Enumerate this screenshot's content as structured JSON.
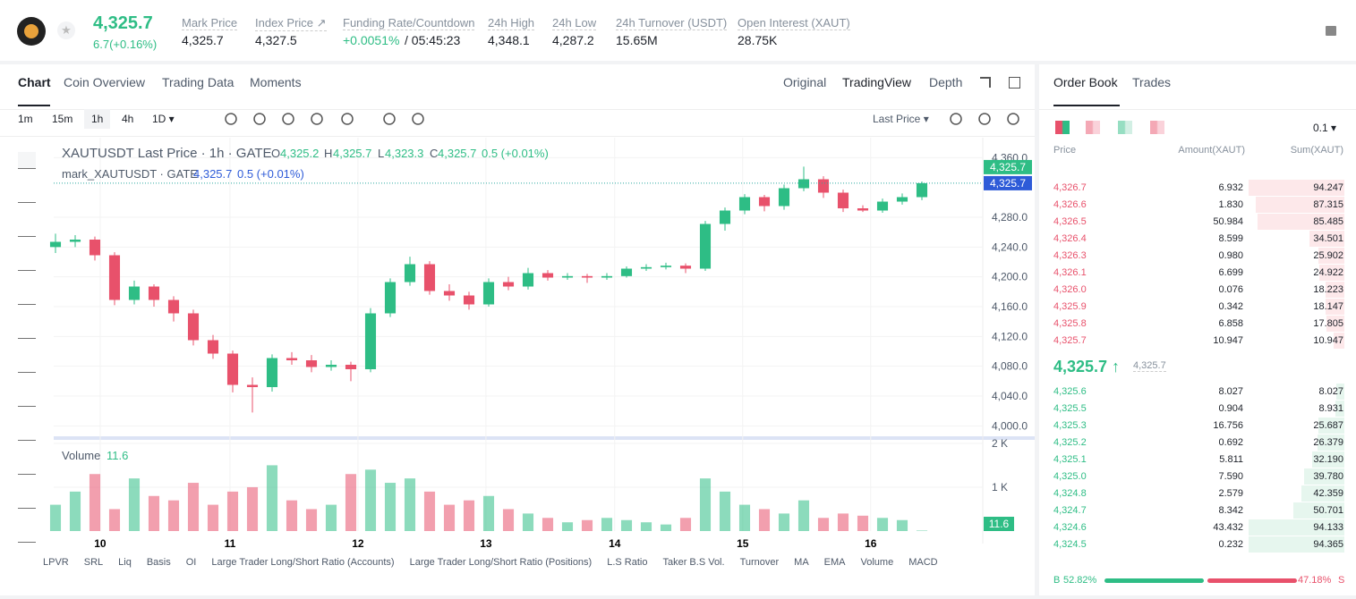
{
  "header": {
    "last_price": "4,325.7",
    "change": "6.7(+0.16%)",
    "stats": [
      {
        "label": "Mark Price",
        "value": "4,325.7"
      },
      {
        "label": "Index Price ↗",
        "value": "4,327.5"
      },
      {
        "label": "Funding Rate/Countdown",
        "value": "+0.0051%",
        "countdown": "/ 05:45:23"
      },
      {
        "label": "24h High",
        "value": "4,348.1"
      },
      {
        "label": "24h Low",
        "value": "4,287.2"
      },
      {
        "label": "24h Turnover (USDT)",
        "value": "15.65M"
      },
      {
        "label": "Open Interest (XAUT)",
        "value": "28.75K"
      }
    ]
  },
  "chart_tabs": [
    "Chart",
    "Coin Overview",
    "Trading Data",
    "Moments"
  ],
  "view_tabs": [
    "Original",
    "TradingView",
    "Depth"
  ],
  "intervals": [
    "1m",
    "15m",
    "1h",
    "4h",
    "1D ▾"
  ],
  "price_source": "Last Price ▾",
  "legend": {
    "title": "XAUTUSDT Last Price · 1h · GATE",
    "o_label": "O",
    "o": "4,325.2",
    "h_label": "H",
    "h": "4,325.7",
    "l_label": "L",
    "l": "4,323.3",
    "c_label": "C",
    "c": "4,325.7",
    "chg": "0.5 (+0.01%)",
    "mark_title": "mark_XAUTUSDT · GATE",
    "mark_price": "4,325.7",
    "mark_chg": "0.5 (+0.01%)"
  },
  "chart_data": {
    "type": "candlestick",
    "candles": [
      [
        4240,
        4258,
        4232,
        4247
      ],
      [
        4247,
        4256,
        4240,
        4250
      ],
      [
        4250,
        4254,
        4222,
        4229
      ],
      [
        4229,
        4233,
        4162,
        4169
      ],
      [
        4169,
        4195,
        4163,
        4187
      ],
      [
        4187,
        4190,
        4160,
        4169
      ],
      [
        4169,
        4174,
        4140,
        4151
      ],
      [
        4151,
        4156,
        4108,
        4115
      ],
      [
        4115,
        4122,
        4090,
        4097
      ],
      [
        4097,
        4101,
        4045,
        4055
      ],
      [
        4055,
        4065,
        4018,
        4052
      ],
      [
        4052,
        4096,
        4046,
        4091
      ],
      [
        4091,
        4099,
        4082,
        4088
      ],
      [
        4088,
        4095,
        4072,
        4079
      ],
      [
        4079,
        4088,
        4074,
        4082
      ],
      [
        4082,
        4086,
        4060,
        4076
      ],
      [
        4076,
        4158,
        4072,
        4151
      ],
      [
        4151,
        4198,
        4146,
        4193
      ],
      [
        4193,
        4227,
        4188,
        4217
      ],
      [
        4217,
        4221,
        4176,
        4181
      ],
      [
        4181,
        4190,
        4168,
        4175
      ],
      [
        4175,
        4180,
        4156,
        4163
      ],
      [
        4163,
        4198,
        4160,
        4193
      ],
      [
        4193,
        4200,
        4182,
        4187
      ],
      [
        4187,
        4212,
        4183,
        4205
      ],
      [
        4205,
        4209,
        4195,
        4199
      ],
      [
        4199,
        4205,
        4196,
        4201
      ],
      [
        4201,
        4204,
        4192,
        4199
      ],
      [
        4199,
        4205,
        4196,
        4201
      ],
      [
        4201,
        4214,
        4199,
        4211
      ],
      [
        4211,
        4217,
        4208,
        4213
      ],
      [
        4213,
        4219,
        4210,
        4215
      ],
      [
        4215,
        4218,
        4205,
        4211
      ],
      [
        4211,
        4275,
        4208,
        4271
      ],
      [
        4271,
        4293,
        4262,
        4289
      ],
      [
        4289,
        4311,
        4284,
        4307
      ],
      [
        4307,
        4310,
        4288,
        4295
      ],
      [
        4295,
        4324,
        4290,
        4319
      ],
      [
        4319,
        4348,
        4315,
        4331
      ],
      [
        4331,
        4335,
        4306,
        4313
      ],
      [
        4313,
        4317,
        4287,
        4292
      ],
      [
        4292,
        4296,
        4287,
        4289
      ],
      [
        4289,
        4305,
        4286,
        4301
      ],
      [
        4301,
        4312,
        4297,
        4307
      ],
      [
        4307,
        4328,
        4303,
        4325.7
      ]
    ],
    "volume": [
      600,
      900,
      1300,
      500,
      1200,
      800,
      700,
      1100,
      600,
      900,
      1000,
      1500,
      700,
      500,
      600,
      1300,
      1400,
      1100,
      1200,
      900,
      600,
      700,
      800,
      500,
      400,
      300,
      200,
      250,
      300,
      250,
      200,
      150,
      300,
      1200,
      900,
      600,
      500,
      400,
      700,
      300,
      400,
      350,
      300,
      250,
      11.6
    ],
    "volume_title": "Volume",
    "volume_last": "11.6",
    "up_color": "#2ebd85",
    "down_color": "#e8516b",
    "xlim": [
      0,
      44
    ],
    "xticks": [
      {
        "value": 2.27,
        "label": "10"
      },
      {
        "value": 8.86,
        "label": "11"
      },
      {
        "value": 15.36,
        "label": "12"
      },
      {
        "value": 21.86,
        "label": "13"
      },
      {
        "value": 28.4,
        "label": "14"
      },
      {
        "value": 34.9,
        "label": "15"
      },
      {
        "value": 41.4,
        "label": "16"
      }
    ],
    "ylim": [
      3986,
      4376
    ],
    "yticks": [
      {
        "value": 4000,
        "label": "4,000.0"
      },
      {
        "value": 4040,
        "label": "4,040.0"
      },
      {
        "value": 4080,
        "label": "4,080.0"
      },
      {
        "value": 4120,
        "label": "4,120.0"
      },
      {
        "value": 4160,
        "label": "4,160.0"
      },
      {
        "value": 4200,
        "label": "4,200.0"
      },
      {
        "value": 4240,
        "label": "4,240.0"
      },
      {
        "value": 4280,
        "label": "4,280.0"
      },
      {
        "value": 4360,
        "label": "4,360.0"
      }
    ],
    "vlim": [
      0,
      2100
    ],
    "vticks": [
      {
        "value": 1000,
        "label": "1 K"
      },
      {
        "value": 2000,
        "label": "2 K"
      }
    ],
    "last_price": {
      "value": 4325.7,
      "label": "4,325.7"
    },
    "mark_price": {
      "value": 4325.7,
      "label": "4,325.7"
    }
  },
  "indicators": [
    "LPVR",
    "SRL",
    "Liq",
    "Basis",
    "OI",
    "Large Trader Long/Short Ratio (Accounts)",
    "Large Trader Long/Short Ratio (Positions)",
    "L.S Ratio",
    "Taker B.S Vol.",
    "Turnover",
    "MA",
    "EMA",
    "Volume",
    "MACD"
  ],
  "order_book": {
    "tabs": [
      "Order Book",
      "Trades"
    ],
    "precision": "0.1 ▾",
    "columns": [
      "Price",
      "Amount(XAUT)",
      "Sum(XAUT)"
    ],
    "asks": [
      [
        "4,326.7",
        "6.932",
        "94.247"
      ],
      [
        "4,326.6",
        "1.830",
        "87.315"
      ],
      [
        "4,326.5",
        "50.984",
        "85.485"
      ],
      [
        "4,326.4",
        "8.599",
        "34.501"
      ],
      [
        "4,326.3",
        "0.980",
        "25.902"
      ],
      [
        "4,326.1",
        "6.699",
        "24.922"
      ],
      [
        "4,326.0",
        "0.076",
        "18.223"
      ],
      [
        "4,325.9",
        "0.342",
        "18.147"
      ],
      [
        "4,325.8",
        "6.858",
        "17.805"
      ],
      [
        "4,325.7",
        "10.947",
        "10.947"
      ]
    ],
    "mid_price": "4,325.7 ↑",
    "mid_mark": "4,325.7",
    "bids": [
      [
        "4,325.6",
        "8.027",
        "8.027"
      ],
      [
        "4,325.5",
        "0.904",
        "8.931"
      ],
      [
        "4,325.3",
        "16.756",
        "25.687"
      ],
      [
        "4,325.2",
        "0.692",
        "26.379"
      ],
      [
        "4,325.1",
        "5.811",
        "32.190"
      ],
      [
        "4,325.0",
        "7.590",
        "39.780"
      ],
      [
        "4,324.8",
        "2.579",
        "42.359"
      ],
      [
        "4,324.7",
        "8.342",
        "50.701"
      ],
      [
        "4,324.6",
        "43.432",
        "94.133"
      ],
      [
        "4,324.5",
        "0.232",
        "94.365"
      ]
    ],
    "buy_label": "B",
    "buy_ratio": {
      "value": 52.82,
      "label": "52.82%"
    },
    "sell_ratio": {
      "value": 47.18,
      "label": "47.18%"
    },
    "sell_label": "S"
  }
}
